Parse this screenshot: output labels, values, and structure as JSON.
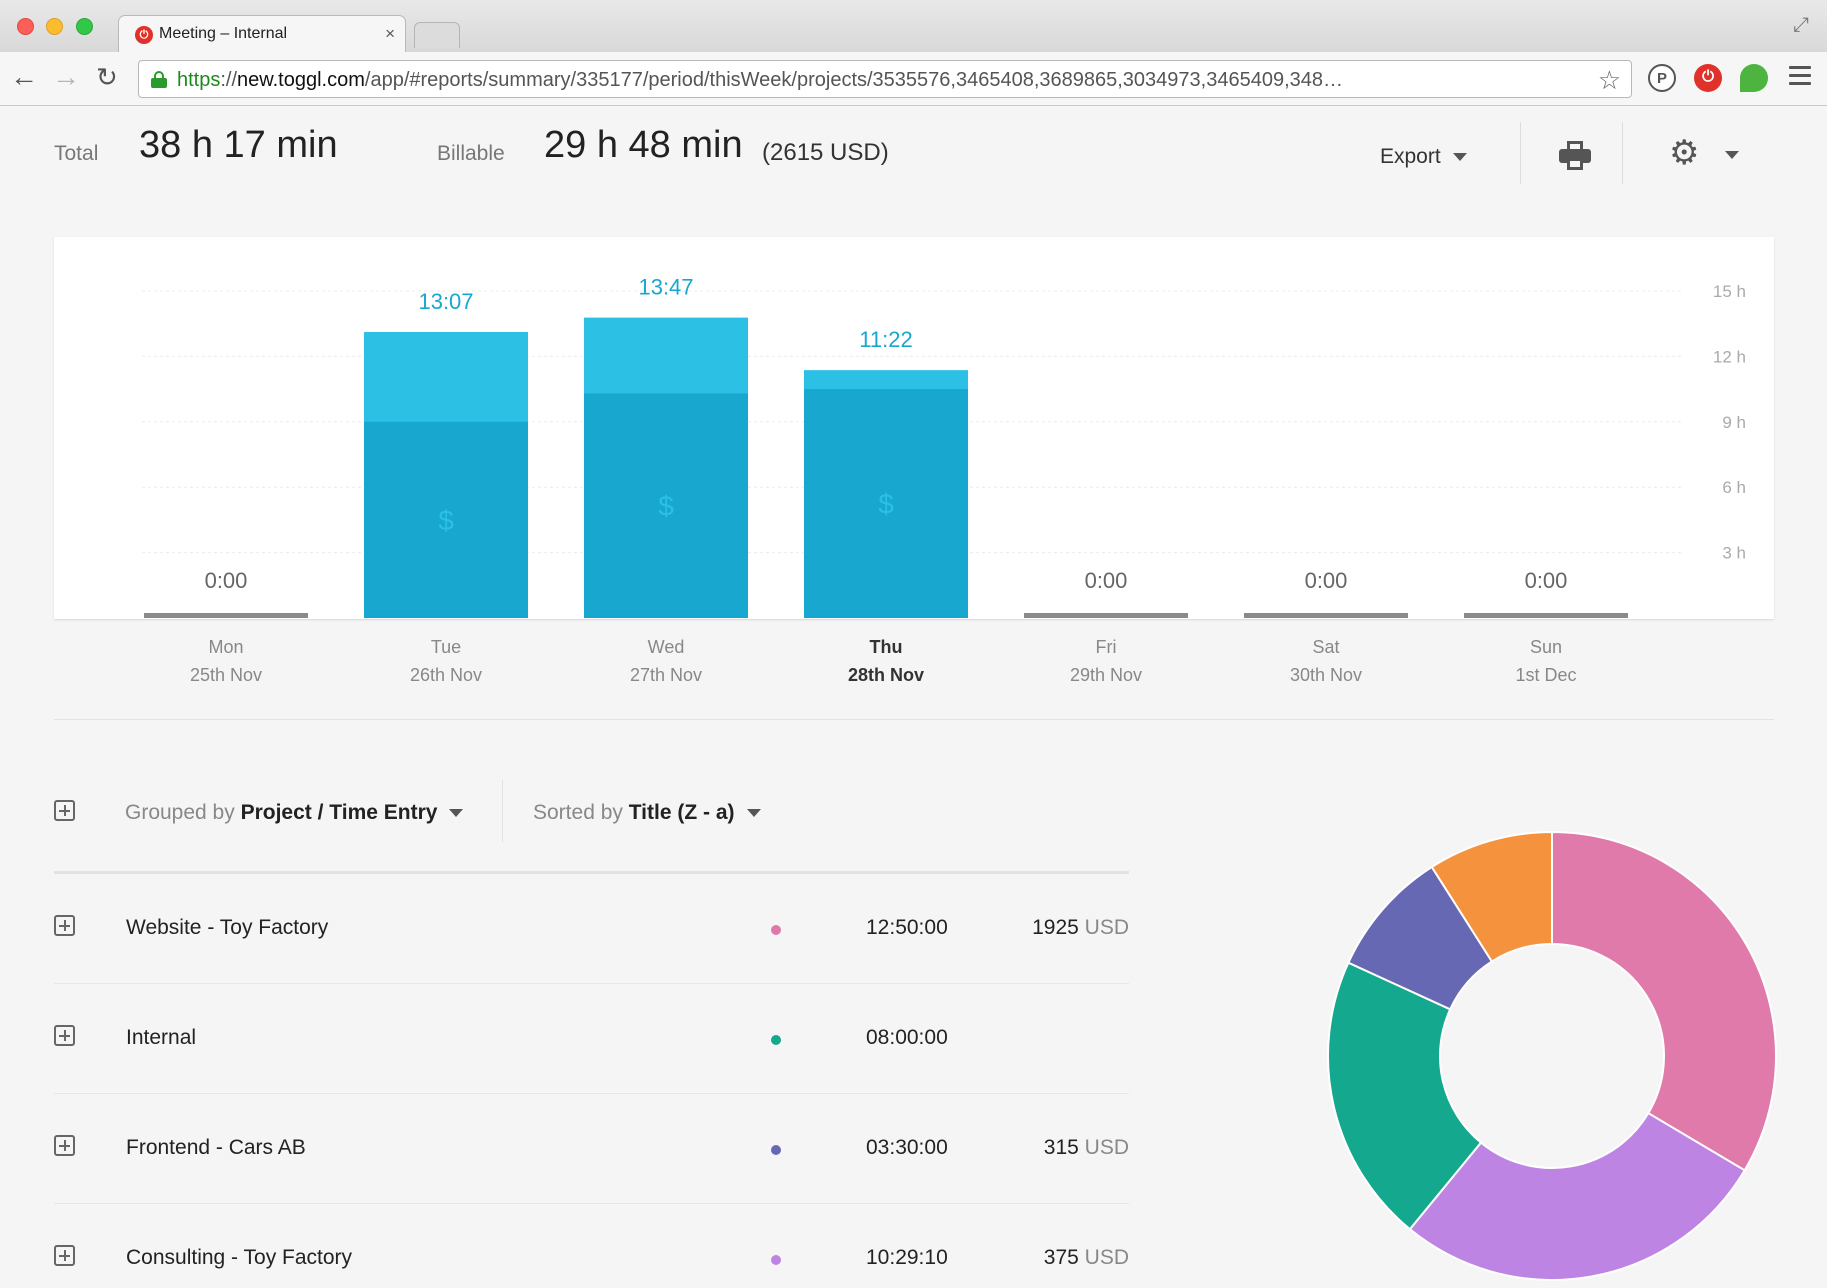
{
  "browser": {
    "tab_title": "Meeting – Internal",
    "tab_close": "×",
    "url_scheme": "https",
    "url_sep": "://",
    "url_host": "new.toggl.com",
    "url_path": "/app/#reports/summary/335177/period/thisWeek/projects/3535576,3465408,3689865,3034973,3465409,348…",
    "ext_p": "P",
    "ext_toggl": "⏻"
  },
  "summary": {
    "total_label": "Total",
    "total_value": "38 h 17 min",
    "billable_label": "Billable",
    "billable_value": "29 h 48 min",
    "billable_usd": "(2615 USD)"
  },
  "actions": {
    "export_label": "Export"
  },
  "chart_data": {
    "type": "bar",
    "stacked": true,
    "categories": [
      "Mon 25th Nov",
      "Tue 26th Nov",
      "Wed 27th Nov",
      "Thu 28th Nov",
      "Fri 29th Nov",
      "Sat 30th Nov",
      "Sun 1st Dec"
    ],
    "days": [
      {
        "day": "Mon",
        "date": "25th Nov",
        "label": "0:00",
        "total": 0,
        "billable": 0,
        "today": false
      },
      {
        "day": "Tue",
        "date": "26th Nov",
        "label": "13:07",
        "total": 13.12,
        "billable": 9.0,
        "today": false
      },
      {
        "day": "Wed",
        "date": "27th Nov",
        "label": "13:47",
        "total": 13.78,
        "billable": 10.3,
        "today": false
      },
      {
        "day": "Thu",
        "date": "28th Nov",
        "label": "11:22",
        "total": 11.37,
        "billable": 10.5,
        "today": true
      },
      {
        "day": "Fri",
        "date": "29th Nov",
        "label": "0:00",
        "total": 0,
        "billable": 0,
        "today": false
      },
      {
        "day": "Sat",
        "date": "30th Nov",
        "label": "0:00",
        "total": 0,
        "billable": 0,
        "today": false
      },
      {
        "day": "Sun",
        "date": "1st Dec",
        "label": "0:00",
        "total": 0,
        "billable": 0,
        "today": false
      }
    ],
    "y_ticks": [
      {
        "value": 3,
        "label": "3 h"
      },
      {
        "value": 6,
        "label": "6 h"
      },
      {
        "value": 9,
        "label": "9 h"
      },
      {
        "value": 12,
        "label": "12 h"
      },
      {
        "value": 15,
        "label": "15 h"
      }
    ],
    "ylim": [
      0,
      15
    ],
    "billable_marker": "$",
    "colors": {
      "total": "#2bc0e4",
      "billable": "#18a7cf",
      "label": "#18a7cf",
      "empty": "#8a8a8a"
    },
    "grid": true
  },
  "controls": {
    "grouped_prefix": "Grouped by",
    "grouped_value": "Project / Time Entry",
    "sorted_prefix": "Sorted by",
    "sorted_value": "Title (Z - a)"
  },
  "projects": [
    {
      "name": "Website - Toy Factory",
      "color": "#e07aaa",
      "duration": "12:50:00",
      "amount": "1925",
      "unit": "USD"
    },
    {
      "name": "Internal",
      "color": "#14a88e",
      "duration": "08:00:00",
      "amount": "",
      "unit": ""
    },
    {
      "name": "Frontend - Cars AB",
      "color": "#6668b4",
      "duration": "03:30:00",
      "amount": "315",
      "unit": "USD"
    },
    {
      "name": "Consulting - Toy Factory",
      "color": "#be84e3",
      "duration": "10:29:10",
      "amount": "375",
      "unit": "USD"
    }
  ],
  "donut_data": {
    "type": "pie",
    "slices": [
      {
        "name": "Website - Toy Factory",
        "value": 12.83,
        "color": "#e07aaa"
      },
      {
        "name": "Consulting - Toy Factory",
        "value": 10.49,
        "color": "#be84e3"
      },
      {
        "name": "Internal",
        "value": 8.0,
        "color": "#14a88e"
      },
      {
        "name": "Frontend - Cars AB",
        "value": 3.5,
        "color": "#6668b4"
      },
      {
        "name": "Other",
        "value": 3.45,
        "color": "#f5923e"
      }
    ]
  }
}
